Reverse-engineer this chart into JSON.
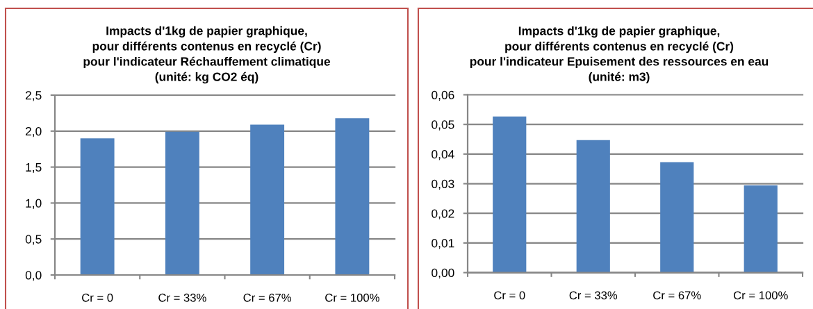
{
  "chart_data": [
    {
      "type": "bar",
      "title": "Impacts d'1kg de papier graphique,\npour différents contenus en recyclé (Cr)\npour l'indicateur Réchauffement climatique\n(unité: kg CO2 éq)",
      "categories": [
        "Cr = 0",
        "Cr = 33%",
        "Cr = 67%",
        "Cr = 100%"
      ],
      "values": [
        1.9,
        1.99,
        2.09,
        2.18
      ],
      "color": "#4f81bd",
      "ylim": [
        0,
        2.5
      ],
      "yticks": [
        {
          "value": 0,
          "label": "0,0"
        },
        {
          "value": 0.5,
          "label": "0,5"
        },
        {
          "value": 1.0,
          "label": "1,0"
        },
        {
          "value": 1.5,
          "label": "1,5"
        },
        {
          "value": 2.0,
          "label": "2,0"
        },
        {
          "value": 2.5,
          "label": "2,5"
        }
      ],
      "grid": "y"
    },
    {
      "type": "bar",
      "title": "Impacts d'1kg de papier graphique,\npour différents contenus en recyclé (Cr)\npour l'indicateur Epuisement des ressources en eau\n(unité: m3)",
      "categories": [
        "Cr = 0",
        "Cr = 33%",
        "Cr = 67%",
        "Cr = 100%"
      ],
      "values": [
        0.0527,
        0.0447,
        0.0373,
        0.0294
      ],
      "color": "#4f81bd",
      "ylim": [
        0,
        0.06
      ],
      "yticks": [
        {
          "value": 0,
          "label": "0,00"
        },
        {
          "value": 0.01,
          "label": "0,01"
        },
        {
          "value": 0.02,
          "label": "0,02"
        },
        {
          "value": 0.03,
          "label": "0,03"
        },
        {
          "value": 0.04,
          "label": "0,04"
        },
        {
          "value": 0.05,
          "label": "0,05"
        },
        {
          "value": 0.06,
          "label": "0,06"
        }
      ],
      "grid": "y"
    }
  ]
}
